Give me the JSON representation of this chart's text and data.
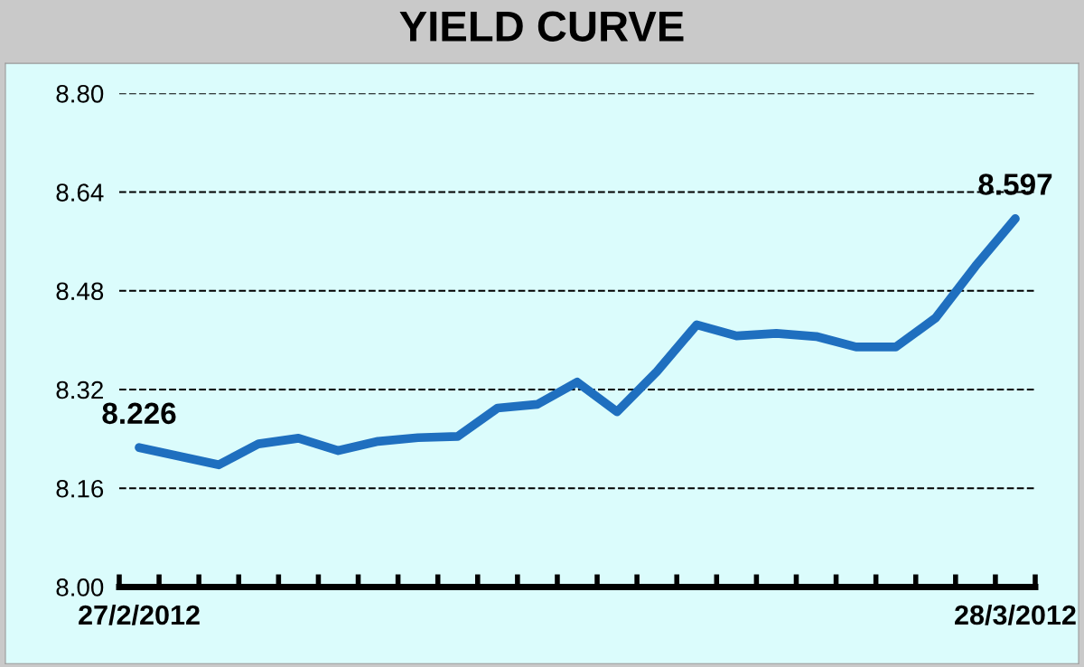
{
  "chart_data": {
    "type": "line",
    "title": "YIELD CURVE",
    "categories": [
      "27/2/2012",
      null,
      null,
      null,
      null,
      null,
      null,
      null,
      null,
      null,
      null,
      null,
      null,
      null,
      null,
      null,
      null,
      null,
      null,
      null,
      null,
      null,
      "28/3/2012"
    ],
    "series": [
      {
        "color": "#1f6fbf",
        "values": [
          8.226,
          8.212,
          8.198,
          8.232,
          8.241,
          8.221,
          8.236,
          8.242,
          8.244,
          8.29,
          8.296,
          8.332,
          8.284,
          8.349,
          8.425,
          8.407,
          8.411,
          8.406,
          8.389,
          8.389,
          8.436,
          8.52,
          8.597
        ],
        "value_labels": [
          "8.226",
          null,
          null,
          null,
          null,
          null,
          null,
          null,
          null,
          null,
          null,
          null,
          null,
          null,
          null,
          null,
          null,
          null,
          null,
          null,
          null,
          null,
          "8.597"
        ]
      }
    ],
    "ylim": [
      8.0,
      8.8
    ],
    "yticks": [
      "8.00",
      "8.16",
      "8.32",
      "8.48",
      "8.64",
      "8.80"
    ],
    "grid": "y",
    "marker": "none",
    "line_style": "solid",
    "legend": false
  }
}
